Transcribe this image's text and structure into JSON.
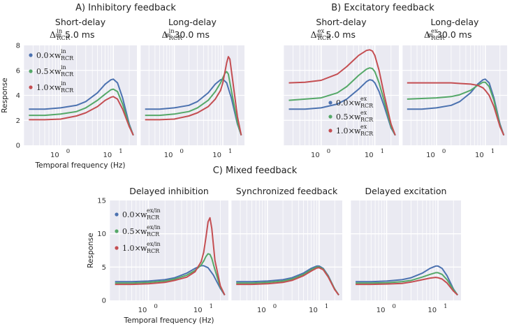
{
  "sections": {
    "A": "A) Inhibitory feedback",
    "B": "B) Excitatory feedback",
    "C": "C) Mixed feedback"
  },
  "colors": {
    "blue": "#4c72b0",
    "green": "#55a868",
    "red": "#c44e52",
    "panel_bg": "#eaeaf2",
    "grid": "#ffffff"
  },
  "chart_data": [
    {
      "id": "A1",
      "type": "line",
      "title": "Short-delay",
      "delay_label": {
        "symbol": "Δ",
        "sup": "in",
        "sub": "RCR",
        "value": "= 5.0 ms"
      },
      "xscale": "log",
      "xlim": [
        0.2,
        28
      ],
      "ylim": [
        0,
        8
      ],
      "yticks": [
        "0",
        "2",
        "4",
        "6",
        "8"
      ],
      "xticks": [
        {
          "base": "10",
          "exp": "0"
        },
        {
          "base": "10",
          "exp": "1"
        }
      ],
      "ylabel": "Response",
      "xlabel": "Temporal frequency (Hz)",
      "legend": {
        "position": "upper-left",
        "entries": [
          {
            "coef": "0.0×",
            "sym": "w",
            "sup": "in",
            "sub": "RCR"
          },
          {
            "coef": "0.5×",
            "sym": "w",
            "sup": "in",
            "sub": "RCR"
          },
          {
            "coef": "1.0×",
            "sym": "w",
            "sup": "in",
            "sub": "RCR"
          }
        ]
      },
      "series": [
        {
          "name": "0.0×w_RCR^in",
          "color": "#4c72b0",
          "x": [
            0.25,
            0.5,
            1,
            2,
            3,
            5,
            7,
            9,
            10,
            12,
            15,
            20,
            24
          ],
          "y": [
            2.9,
            2.9,
            3.0,
            3.2,
            3.5,
            4.2,
            4.9,
            5.25,
            5.3,
            5.0,
            3.8,
            1.7,
            0.8
          ]
        },
        {
          "name": "0.5×w_RCR^in",
          "color": "#55a868",
          "x": [
            0.25,
            0.5,
            1,
            2,
            3,
            5,
            7,
            9,
            10,
            12,
            15,
            20,
            24
          ],
          "y": [
            2.4,
            2.4,
            2.5,
            2.7,
            3.0,
            3.6,
            4.1,
            4.45,
            4.5,
            4.3,
            3.3,
            1.6,
            0.8
          ]
        },
        {
          "name": "1.0×w_RCR^in",
          "color": "#c44e52",
          "x": [
            0.25,
            0.5,
            1,
            2,
            3,
            5,
            7,
            9,
            10,
            12,
            15,
            20,
            24
          ],
          "y": [
            2.05,
            2.05,
            2.1,
            2.35,
            2.6,
            3.1,
            3.6,
            3.85,
            3.9,
            3.7,
            2.9,
            1.5,
            0.8
          ]
        }
      ]
    },
    {
      "id": "A2",
      "type": "line",
      "title": "Long-delay",
      "delay_label": {
        "symbol": "Δ",
        "sup": "in",
        "sub": "RCR",
        "value": "= 30.0 ms"
      },
      "xscale": "log",
      "xlim": [
        0.2,
        28
      ],
      "ylim": [
        0,
        8
      ],
      "yticks": [],
      "xticks": [
        {
          "base": "10",
          "exp": "0"
        },
        {
          "base": "10",
          "exp": "1"
        }
      ],
      "series": [
        {
          "name": "0.0×w_RCR^in",
          "color": "#4c72b0",
          "x": [
            0.25,
            0.5,
            1,
            2,
            3,
            5,
            7,
            9,
            10,
            12,
            15,
            20,
            24
          ],
          "y": [
            2.9,
            2.9,
            3.0,
            3.2,
            3.5,
            4.2,
            4.9,
            5.25,
            5.3,
            5.0,
            3.8,
            1.7,
            0.8
          ]
        },
        {
          "name": "0.5×w_RCR^in",
          "color": "#55a868",
          "x": [
            0.25,
            0.5,
            1,
            2,
            3,
            5,
            7,
            9,
            10,
            11,
            12,
            13,
            15,
            20,
            24
          ],
          "y": [
            2.4,
            2.4,
            2.5,
            2.7,
            3.0,
            3.6,
            4.3,
            5.0,
            5.4,
            5.75,
            5.9,
            5.7,
            4.4,
            1.8,
            0.8
          ]
        },
        {
          "name": "1.0×w_RCR^in",
          "color": "#c44e52",
          "x": [
            0.25,
            0.5,
            1,
            2,
            3,
            5,
            7,
            9,
            10,
            11,
            12,
            13,
            14,
            16,
            20,
            24
          ],
          "y": [
            2.05,
            2.05,
            2.1,
            2.35,
            2.6,
            3.1,
            3.7,
            4.4,
            5.0,
            5.8,
            6.6,
            7.1,
            6.9,
            5.2,
            2.3,
            0.8
          ]
        }
      ]
    },
    {
      "id": "B1",
      "type": "line",
      "title": "Short-delay",
      "delay_label": {
        "symbol": "Δ",
        "sup": "ex",
        "sub": "RCR",
        "value": "= 5.0 ms"
      },
      "xscale": "log",
      "xlim": [
        0.2,
        28
      ],
      "ylim": [
        0,
        8
      ],
      "yticks": [],
      "xticks": [
        {
          "base": "10",
          "exp": "0"
        },
        {
          "base": "10",
          "exp": "1"
        }
      ],
      "legend": {
        "position": "lower-right",
        "entries": [
          {
            "coef": "0.0×",
            "sym": "w",
            "sup": "ex",
            "sub": "RCR"
          },
          {
            "coef": "0.5×",
            "sym": "w",
            "sup": "ex",
            "sub": "RCR"
          },
          {
            "coef": "1.0×",
            "sym": "w",
            "sup": "ex",
            "sub": "RCR"
          }
        ]
      },
      "series": [
        {
          "name": "0.0×w_RCR^ex",
          "color": "#4c72b0",
          "x": [
            0.25,
            0.5,
            1,
            2,
            3,
            5,
            7,
            8,
            9,
            10,
            12,
            15,
            20,
            24
          ],
          "y": [
            2.9,
            2.9,
            3.0,
            3.3,
            3.7,
            4.5,
            5.1,
            5.25,
            5.2,
            5.0,
            4.3,
            3.1,
            1.4,
            0.8
          ]
        },
        {
          "name": "0.5×w_RCR^ex",
          "color": "#55a868",
          "x": [
            0.25,
            0.5,
            1,
            2,
            3,
            5,
            7,
            8,
            9,
            10,
            12,
            15,
            20,
            24
          ],
          "y": [
            3.6,
            3.7,
            3.8,
            4.2,
            4.7,
            5.6,
            6.1,
            6.2,
            6.15,
            5.9,
            5.0,
            3.5,
            1.5,
            0.8
          ]
        },
        {
          "name": "1.0×w_RCR^ex",
          "color": "#c44e52",
          "x": [
            0.25,
            0.5,
            1,
            2,
            3,
            5,
            7,
            8,
            9,
            10,
            12,
            15,
            20,
            24
          ],
          "y": [
            5.0,
            5.05,
            5.2,
            5.7,
            6.3,
            7.2,
            7.6,
            7.65,
            7.55,
            7.2,
            6.0,
            4.0,
            1.7,
            0.8
          ]
        }
      ]
    },
    {
      "id": "B2",
      "type": "line",
      "title": "Long-delay",
      "delay_label": {
        "symbol": "Δ",
        "sup": "ex",
        "sub": "RCR",
        "value": "= 30.0 ms"
      },
      "xscale": "log",
      "xlim": [
        0.2,
        28
      ],
      "ylim": [
        0,
        8
      ],
      "yticks": [],
      "xticks": [
        {
          "base": "10",
          "exp": "0"
        },
        {
          "base": "10",
          "exp": "1"
        }
      ],
      "series": [
        {
          "name": "0.0×w_RCR^ex",
          "color": "#4c72b0",
          "x": [
            0.25,
            0.5,
            1,
            2,
            3,
            5,
            7,
            9,
            10,
            12,
            15,
            20,
            24
          ],
          "y": [
            2.9,
            2.9,
            3.0,
            3.2,
            3.5,
            4.2,
            4.9,
            5.25,
            5.3,
            5.0,
            3.8,
            1.7,
            0.8
          ]
        },
        {
          "name": "0.5×w_RCR^ex",
          "color": "#55a868",
          "x": [
            0.25,
            0.5,
            1,
            2,
            3,
            5,
            7,
            9,
            10,
            12,
            15,
            20,
            24
          ],
          "y": [
            3.7,
            3.75,
            3.8,
            3.9,
            4.05,
            4.4,
            4.8,
            5.05,
            5.05,
            4.7,
            3.6,
            1.6,
            0.8
          ]
        },
        {
          "name": "1.0×w_RCR^ex",
          "color": "#c44e52",
          "x": [
            0.25,
            0.5,
            1,
            2,
            3,
            5,
            7,
            9,
            10,
            12,
            15,
            20,
            24
          ],
          "y": [
            5.0,
            5.0,
            5.0,
            5.0,
            4.95,
            4.9,
            4.8,
            4.6,
            4.4,
            4.0,
            3.1,
            1.5,
            0.8
          ]
        }
      ]
    },
    {
      "id": "C1",
      "type": "line",
      "title": "Delayed inhibition",
      "xscale": "log",
      "xlim": [
        0.2,
        28
      ],
      "ylim": [
        0,
        15
      ],
      "yticks": [
        "0",
        "5",
        "10",
        "15"
      ],
      "xticks": [
        {
          "base": "10",
          "exp": "0"
        },
        {
          "base": "10",
          "exp": "1"
        }
      ],
      "ylabel": "Response",
      "xlabel": "Temporal frequency (Hz)",
      "legend": {
        "position": "upper-left",
        "entries": [
          {
            "coef": "0.0×",
            "sym": "w",
            "sup": "ex/in",
            "sub": "RCR"
          },
          {
            "coef": "0.5×",
            "sym": "w",
            "sup": "ex/in",
            "sub": "RCR"
          },
          {
            "coef": "1.0×",
            "sym": "w",
            "sup": "ex/in",
            "sub": "RCR"
          }
        ]
      },
      "series": [
        {
          "name": "0.0×w_RCR^ex/in",
          "color": "#4c72b0",
          "x": [
            0.25,
            0.5,
            1,
            2,
            3,
            5,
            7,
            9,
            10,
            12,
            15,
            20,
            24
          ],
          "y": [
            2.8,
            2.8,
            2.9,
            3.1,
            3.4,
            4.1,
            4.8,
            5.2,
            5.2,
            4.9,
            3.8,
            1.8,
            0.8
          ]
        },
        {
          "name": "0.5×w_RCR^ex/in",
          "color": "#55a868",
          "x": [
            0.25,
            0.5,
            1,
            2,
            3,
            5,
            7,
            9,
            10,
            11,
            12,
            13,
            14,
            16,
            20,
            24
          ],
          "y": [
            2.6,
            2.6,
            2.7,
            2.9,
            3.2,
            3.8,
            4.5,
            5.3,
            5.9,
            6.6,
            7.0,
            6.9,
            6.3,
            4.6,
            2.0,
            0.8
          ]
        },
        {
          "name": "1.0×w_RCR^ex/in",
          "color": "#c44e52",
          "x": [
            0.25,
            0.5,
            1,
            2,
            3,
            5,
            7,
            9,
            10,
            11,
            12,
            13,
            14,
            16,
            20,
            24
          ],
          "y": [
            2.4,
            2.4,
            2.5,
            2.7,
            3.0,
            3.5,
            4.3,
            5.8,
            7.2,
            9.5,
            11.8,
            12.4,
            10.8,
            6.0,
            2.2,
            0.8
          ]
        }
      ]
    },
    {
      "id": "C2",
      "type": "line",
      "title": "Synchronized feedback",
      "xscale": "log",
      "xlim": [
        0.2,
        28
      ],
      "ylim": [
        0,
        15
      ],
      "yticks": [],
      "xticks": [
        {
          "base": "10",
          "exp": "0"
        },
        {
          "base": "10",
          "exp": "1"
        }
      ],
      "series": [
        {
          "name": "0.0×w_RCR^ex/in",
          "color": "#4c72b0",
          "x": [
            0.25,
            0.5,
            1,
            2,
            3,
            5,
            7,
            9,
            10,
            12,
            15,
            20,
            24
          ],
          "y": [
            2.8,
            2.8,
            2.9,
            3.1,
            3.4,
            4.1,
            4.8,
            5.15,
            5.15,
            4.8,
            3.7,
            1.7,
            0.8
          ]
        },
        {
          "name": "0.5×w_RCR^ex/in",
          "color": "#55a868",
          "x": [
            0.25,
            0.5,
            1,
            2,
            3,
            5,
            7,
            9,
            10,
            12,
            15,
            20,
            24
          ],
          "y": [
            2.6,
            2.6,
            2.7,
            2.9,
            3.2,
            3.9,
            4.6,
            5.0,
            5.0,
            4.7,
            3.6,
            1.7,
            0.8
          ]
        },
        {
          "name": "1.0×w_RCR^ex/in",
          "color": "#c44e52",
          "x": [
            0.25,
            0.5,
            1,
            2,
            3,
            5,
            7,
            9,
            10,
            12,
            15,
            20,
            24
          ],
          "y": [
            2.4,
            2.4,
            2.5,
            2.7,
            3.0,
            3.7,
            4.4,
            4.85,
            4.9,
            4.6,
            3.5,
            1.6,
            0.8
          ]
        }
      ]
    },
    {
      "id": "C3",
      "type": "line",
      "title": "Delayed excitation",
      "xscale": "log",
      "xlim": [
        0.2,
        28
      ],
      "ylim": [
        0,
        15
      ],
      "yticks": [],
      "xticks": [
        {
          "base": "10",
          "exp": "0"
        },
        {
          "base": "10",
          "exp": "1"
        }
      ],
      "series": [
        {
          "name": "0.0×w_RCR^ex/in",
          "color": "#4c72b0",
          "x": [
            0.25,
            0.5,
            1,
            2,
            3,
            5,
            7,
            9,
            10,
            12,
            15,
            20,
            24
          ],
          "y": [
            2.8,
            2.8,
            2.9,
            3.1,
            3.4,
            4.1,
            4.8,
            5.15,
            5.15,
            4.8,
            3.7,
            1.7,
            0.8
          ]
        },
        {
          "name": "0.5×w_RCR^ex/in",
          "color": "#55a868",
          "x": [
            0.25,
            0.5,
            1,
            2,
            3,
            5,
            7,
            9,
            10,
            12,
            15,
            20,
            24
          ],
          "y": [
            2.6,
            2.6,
            2.65,
            2.8,
            3.0,
            3.5,
            3.9,
            4.15,
            4.15,
            3.9,
            3.1,
            1.6,
            0.8
          ]
        },
        {
          "name": "1.0×w_RCR^ex/in",
          "color": "#c44e52",
          "x": [
            0.25,
            0.5,
            1,
            2,
            3,
            5,
            7,
            9,
            10,
            12,
            15,
            20,
            24
          ],
          "y": [
            2.4,
            2.4,
            2.45,
            2.55,
            2.75,
            3.1,
            3.35,
            3.45,
            3.4,
            3.2,
            2.6,
            1.4,
            0.8
          ]
        }
      ]
    }
  ]
}
